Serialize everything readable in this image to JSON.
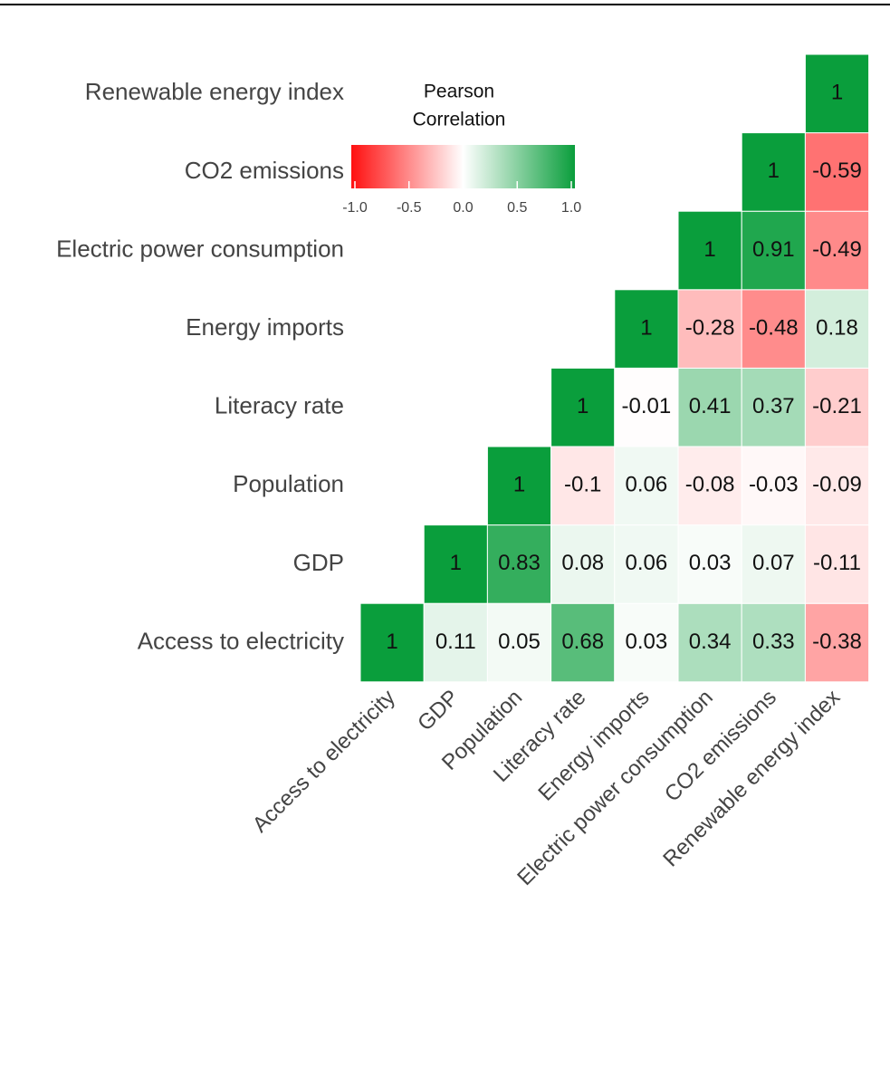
{
  "chart_data": {
    "type": "heatmap",
    "categories": [
      "Access to electricity",
      "GDP",
      "Population",
      "Literacy rate",
      "Energy imports",
      "Electric power consumption",
      "CO2 emissions",
      "Renewable energy index"
    ],
    "values": [
      [
        1,
        0.11,
        0.05,
        0.68,
        0.03,
        0.34,
        0.33,
        -0.38
      ],
      [
        null,
        1,
        0.83,
        0.08,
        0.06,
        0.03,
        0.07,
        -0.11
      ],
      [
        null,
        null,
        1,
        -0.1,
        0.06,
        -0.08,
        -0.03,
        -0.09
      ],
      [
        null,
        null,
        null,
        1,
        -0.01,
        0.41,
        0.37,
        -0.21
      ],
      [
        null,
        null,
        null,
        null,
        1,
        -0.28,
        -0.48,
        0.18
      ],
      [
        null,
        null,
        null,
        null,
        null,
        1,
        0.91,
        -0.49
      ],
      [
        null,
        null,
        null,
        null,
        null,
        null,
        1,
        -0.59
      ],
      [
        null,
        null,
        null,
        null,
        null,
        null,
        null,
        1
      ]
    ],
    "legend_title": [
      "Pearson",
      "Correlation"
    ],
    "clim": [
      -1,
      1
    ],
    "legend_ticks": [
      {
        "value": -1,
        "label": "-1.0"
      },
      {
        "value": -0.5,
        "label": "-0.5"
      },
      {
        "value": 0,
        "label": "0.0"
      },
      {
        "value": 0.5,
        "label": "0.5"
      },
      {
        "value": 1,
        "label": "1.0"
      }
    ],
    "colorscale": {
      "low": "#ff1010",
      "mid": "#ffffff",
      "high": "#0a9e3c"
    }
  }
}
